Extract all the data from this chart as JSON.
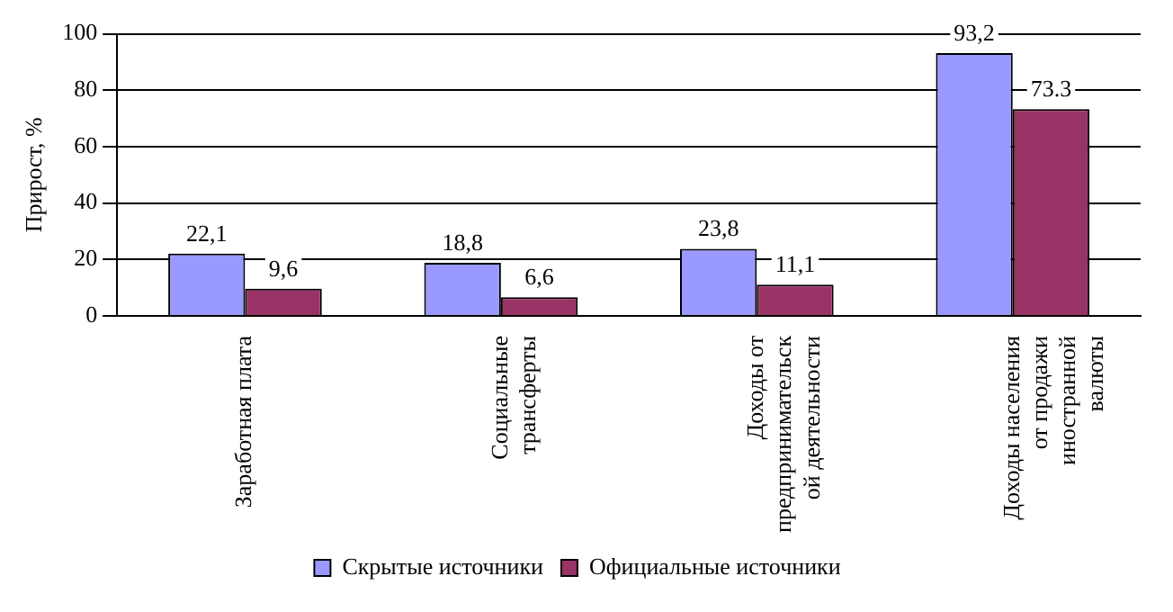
{
  "chart_data": {
    "type": "bar",
    "ylabel": "Прирост, %",
    "categories": [
      "Заработная плата",
      "Социальные\nтрансферты",
      "Доходы от\nпредпринимательск\nой деятельности",
      "Доходы населения\nот продажи\nиностранной\nвалюты"
    ],
    "series": [
      {
        "name": "Скрытые источники",
        "color": "#9999ff",
        "values": [
          22.1,
          18.8,
          23.8,
          93.2
        ],
        "value_labels": [
          "22,1",
          "18,8",
          "23,8",
          "93,2"
        ]
      },
      {
        "name": "Официальные источники",
        "color": "#993366",
        "values": [
          9.6,
          6.6,
          11.1,
          73.3
        ],
        "value_labels": [
          "9,6",
          "6,6",
          "11,1",
          "73.3"
        ]
      }
    ],
    "ylim": [
      0,
      100
    ],
    "yticks": [
      0,
      20,
      40,
      60,
      80,
      100
    ],
    "grid": "y",
    "legend": "bottom"
  }
}
